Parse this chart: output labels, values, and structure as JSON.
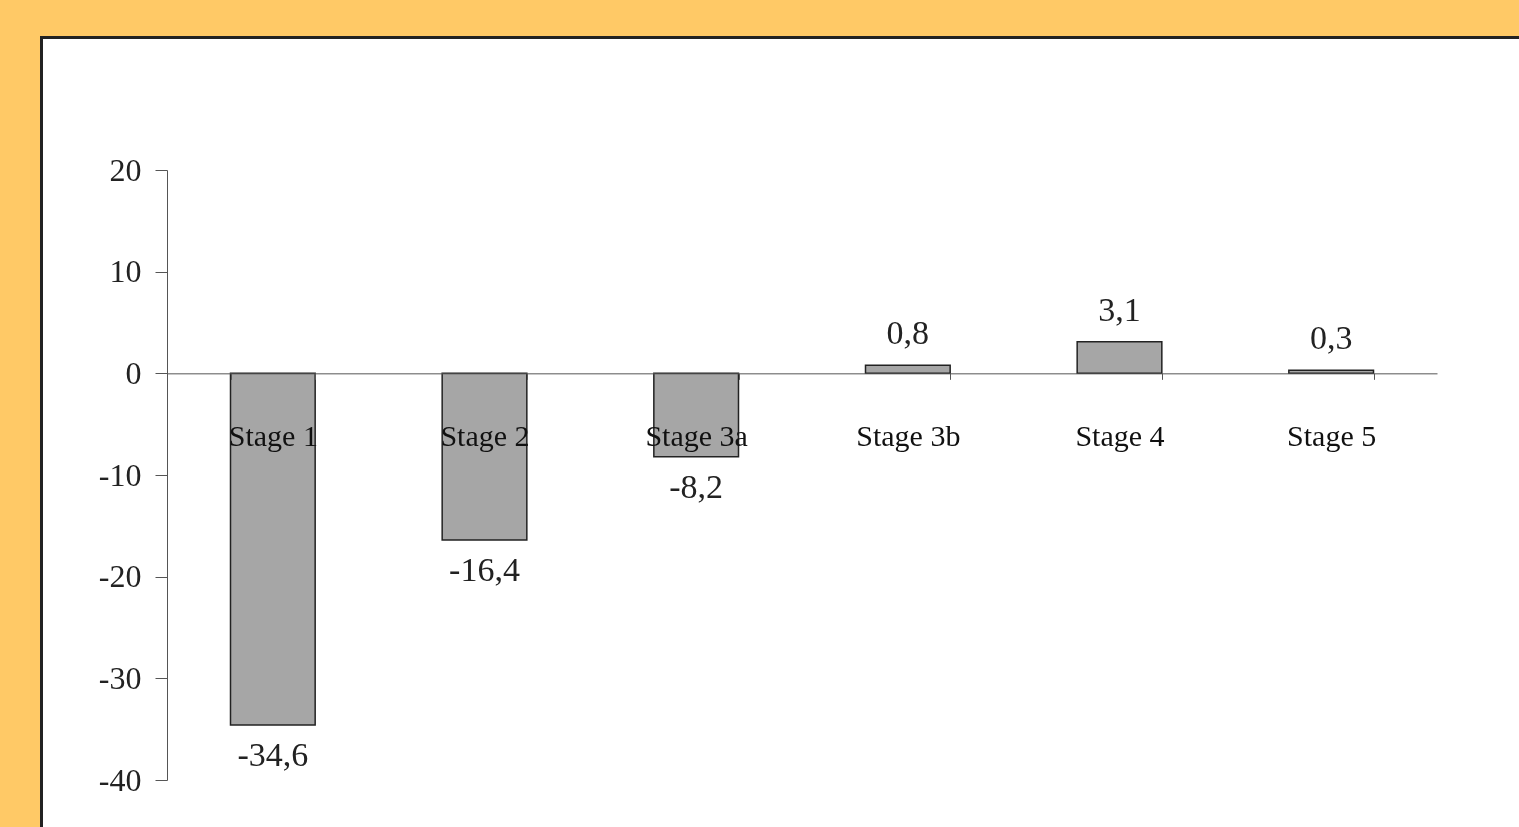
{
  "chart_data": {
    "type": "bar",
    "categories": [
      "Stage 1",
      "Stage 2",
      "Stage 3a",
      "Stage 3b",
      "Stage 4",
      "Stage 5"
    ],
    "values": [
      -34.6,
      -16.4,
      -8.2,
      0.8,
      3.1,
      0.3
    ],
    "value_labels": [
      "-34,6",
      "-16,4",
      "-8,2",
      "0,8",
      "3,1",
      "0,3"
    ],
    "color": "#a6a6a6",
    "ylim": [
      -40,
      20
    ],
    "yticks": [
      -40,
      -30,
      -20,
      -10,
      0,
      10,
      20
    ],
    "grid": false
  }
}
